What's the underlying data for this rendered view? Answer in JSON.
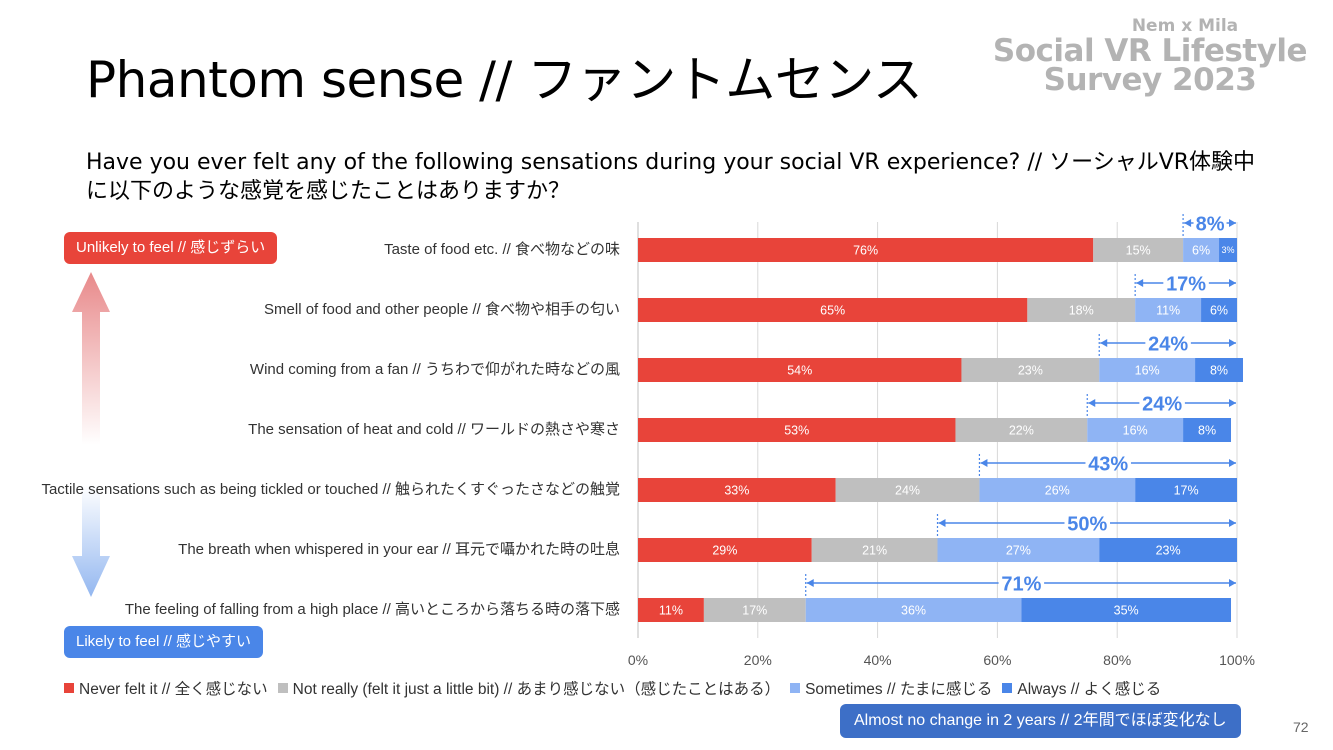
{
  "title": "Phantom sense // ファントムセンス",
  "brand": {
    "line1": "Nem x Mila",
    "line2": "Social VR Lifestyle",
    "line3": "Survey 2023"
  },
  "question": "Have you ever felt any of the following sensations during your social VR experience? // ソーシャルVR体験中に以下のような感覚を感じたことはありますか？",
  "top_tag": "Unlikely to feel // 感じずらい",
  "bottom_tag": "Likely to feel // 感じやすい",
  "note": "Almost no change in 2 years // 2年間でほぼ変化なし",
  "page_number": "72",
  "colors": {
    "never": "#e8443a",
    "not_really": "#bfbfbf",
    "sometimes": "#8fb4f4",
    "always": "#4a86e8",
    "annotation": "#4a86e8"
  },
  "chart_data": {
    "type": "bar",
    "orientation": "horizontal",
    "stacked": true,
    "percent": true,
    "categories": [
      "Taste of food etc. // 食べ物などの味",
      "Smell of food and other people // 食べ物や相手の匂い",
      "Wind coming from a fan // うちわで仰がれた時などの風",
      "The sensation of heat and cold // ワールドの熱さや寒さ",
      "Tactile sensations such as being tickled or touched // 触られたくすぐったさなどの触覚",
      "The breath when whispered in your ear // 耳元で囁かれた時の吐息",
      "The feeling of falling from a high place // 高いところから落ちる時の落下感"
    ],
    "series": [
      {
        "name": "Never felt it // 全く感じない",
        "key": "never",
        "values": [
          76,
          65,
          54,
          53,
          33,
          29,
          11
        ]
      },
      {
        "name": "Not really (felt it just a little bit) // あまり感じない（感じたことはある）",
        "key": "not_really",
        "values": [
          15,
          18,
          23,
          22,
          24,
          21,
          17
        ]
      },
      {
        "name": "Sometimes // たまに感じる",
        "key": "sometimes",
        "values": [
          6,
          11,
          16,
          16,
          26,
          27,
          36
        ]
      },
      {
        "name": "Always // よく感じる",
        "key": "always",
        "values": [
          3,
          6,
          8,
          8,
          17,
          23,
          35
        ]
      }
    ],
    "annotations": [
      "8%",
      "17%",
      "24%",
      "24%",
      "43%",
      "50%",
      "71%"
    ],
    "xticks": [
      "0%",
      "20%",
      "40%",
      "60%",
      "80%",
      "100%"
    ],
    "xlim": [
      0,
      100
    ],
    "legend": "bottom"
  }
}
